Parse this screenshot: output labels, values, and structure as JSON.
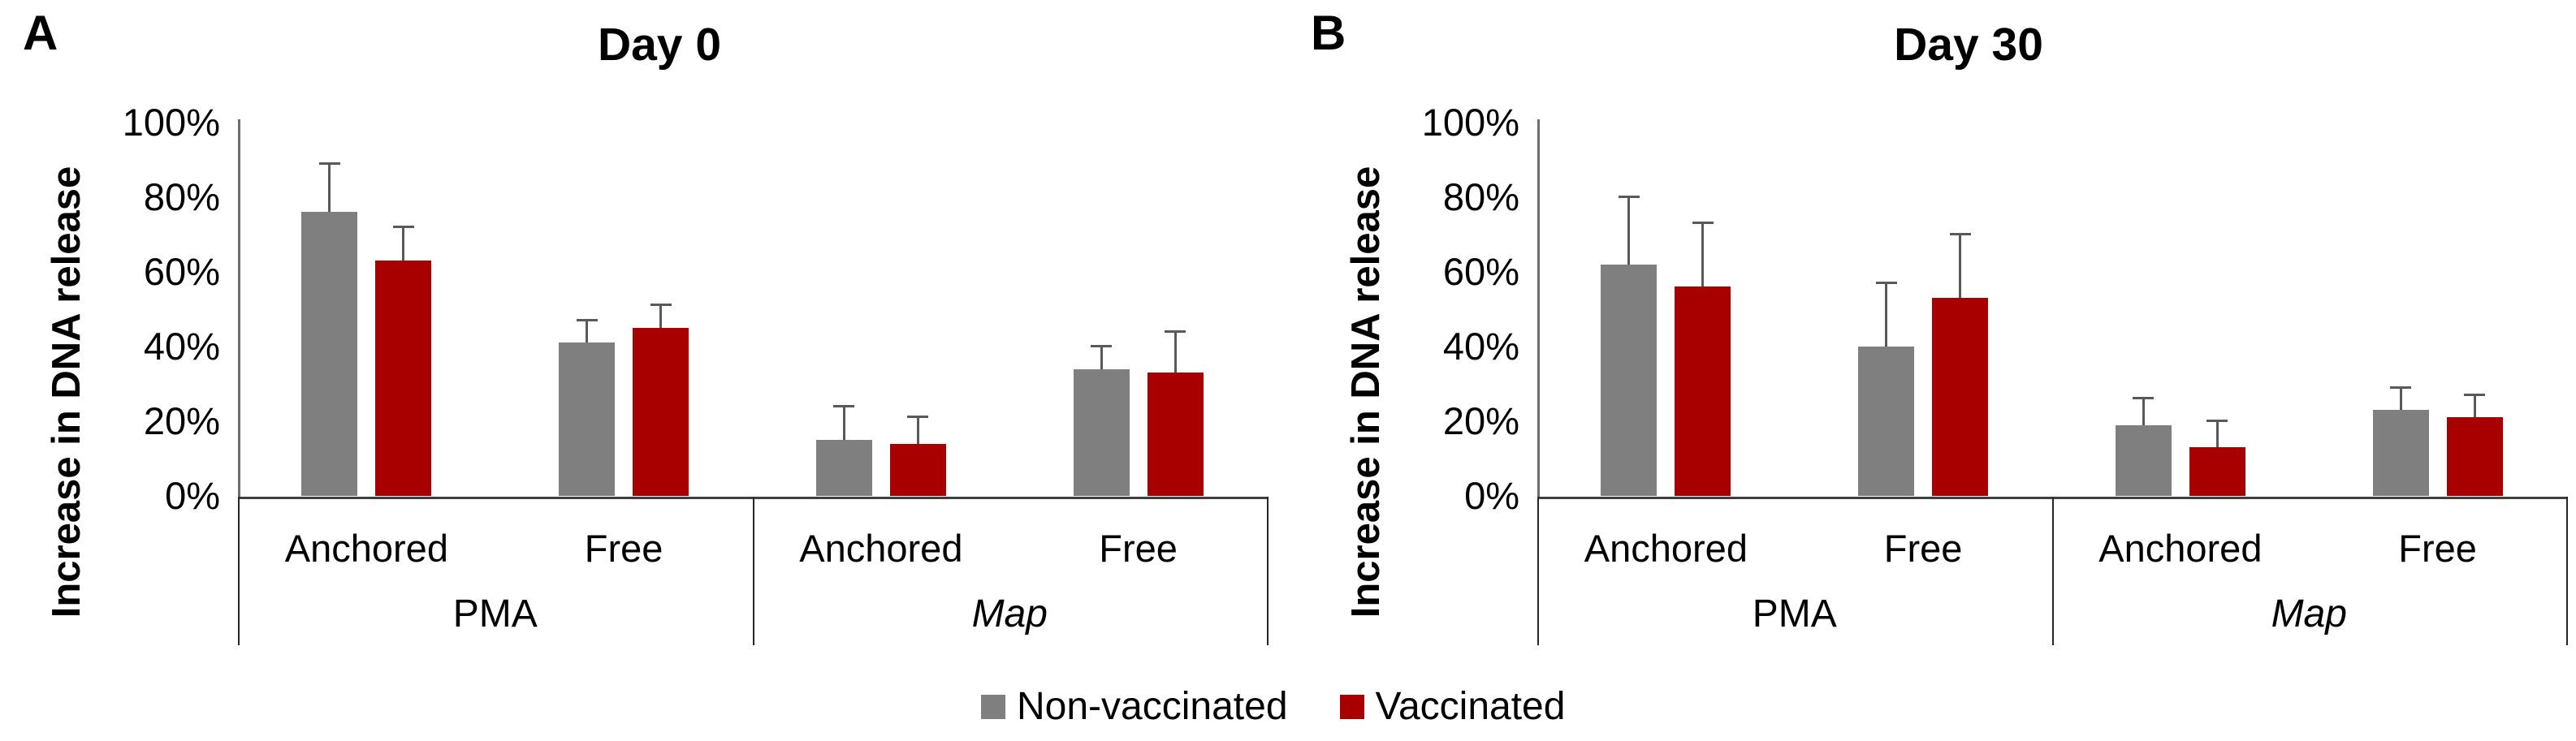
{
  "chart_data": {
    "type": "bar",
    "ylabel": "Increase in DNA release",
    "ylim": [
      0,
      100
    ],
    "y_ticks": [
      "0%",
      "20%",
      "40%",
      "60%",
      "80%",
      "100%"
    ],
    "grid": false,
    "legend_position": "bottom-center",
    "series": [
      "Non-vaccinated",
      "Vaccinated"
    ],
    "colors": {
      "non_vaccinated": "#7f7f7f",
      "vaccinated": "#a80000",
      "error_bar": "#595959"
    },
    "panels": [
      {
        "letter": "A",
        "title": "Day 0",
        "groups": [
          {
            "label": "PMA",
            "italic": false,
            "categories": [
              {
                "label": "Anchored",
                "values": [
                  76,
                  63
                ],
                "errors": [
                  13,
                  9
                ]
              },
              {
                "label": "Free",
                "values": [
                  41,
                  45
                ],
                "errors": [
                  6,
                  6
                ]
              }
            ]
          },
          {
            "label": "Map",
            "italic": true,
            "categories": [
              {
                "label": "Anchored",
                "values": [
                  15,
                  14
                ],
                "errors": [
                  9,
                  7
                ]
              },
              {
                "label": "Free",
                "values": [
                  34,
                  33
                ],
                "errors": [
                  6,
                  11
                ]
              }
            ]
          }
        ]
      },
      {
        "letter": "B",
        "title": "Day 30",
        "groups": [
          {
            "label": "PMA",
            "italic": false,
            "categories": [
              {
                "label": "Anchored",
                "values": [
                  62,
                  56
                ],
                "errors": [
                  18,
                  17
                ]
              },
              {
                "label": "Free",
                "values": [
                  40,
                  53
                ],
                "errors": [
                  17,
                  17
                ]
              }
            ]
          },
          {
            "label": "Map",
            "italic": true,
            "categories": [
              {
                "label": "Anchored",
                "values": [
                  19,
                  13
                ],
                "errors": [
                  7,
                  7
                ]
              },
              {
                "label": "Free",
                "values": [
                  23,
                  21
                ],
                "errors": [
                  6,
                  6
                ]
              }
            ]
          }
        ]
      }
    ]
  },
  "legend": {
    "items": [
      {
        "label": "Non-vaccinated",
        "color": "#7f7f7f"
      },
      {
        "label": "Vaccinated",
        "color": "#a80000"
      }
    ]
  }
}
